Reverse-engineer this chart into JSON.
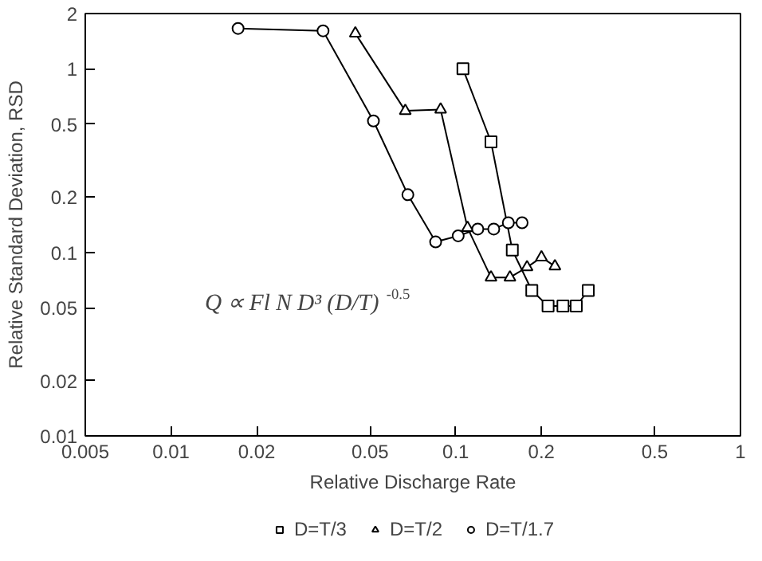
{
  "chart_data": {
    "type": "line",
    "xlabel": "Relative Discharge Rate",
    "ylabel": "Relative Standard Deviation, RSD",
    "log": "xy",
    "xlim": [
      0.005,
      1
    ],
    "ylim": [
      0.01,
      2
    ],
    "xticks": [
      0.005,
      0.01,
      0.02,
      0.05,
      0.1,
      0.2,
      0.5,
      1
    ],
    "yticks": [
      0.01,
      0.02,
      0.05,
      0.1,
      0.2,
      0.5,
      1,
      2
    ],
    "grid": false,
    "legend": "bottom",
    "annotations": [
      "Q ∝ Fl N D³ (D/T)$^{-0.5}$"
    ],
    "series": [
      {
        "name": "D=T/3",
        "color": "#000000",
        "marker": "square",
        "x": [
          0.106,
          0.133,
          0.158,
          0.185,
          0.211,
          0.238,
          0.265,
          0.292
        ],
        "values": [
          1.0,
          0.4,
          0.103,
          0.062,
          0.051,
          0.051,
          0.051,
          0.062
        ]
      },
      {
        "name": "D=T/2",
        "color": "#000000",
        "marker": "triangle",
        "x": [
          0.0444,
          0.0665,
          0.0885,
          0.11,
          0.133,
          0.155,
          0.178,
          0.2,
          0.223
        ],
        "values": [
          1.56,
          0.59,
          0.6,
          0.136,
          0.073,
          0.073,
          0.083,
          0.094,
          0.084
        ]
      },
      {
        "name": "D=T/1.7",
        "color": "#000000",
        "marker": "circle",
        "x": [
          0.0172,
          0.0342,
          0.0514,
          0.0679,
          0.085,
          0.102,
          0.1195,
          0.136,
          0.153,
          0.171
        ],
        "values": [
          1.66,
          1.61,
          0.52,
          0.206,
          0.114,
          0.123,
          0.134,
          0.134,
          0.145,
          0.145
        ]
      }
    ]
  }
}
